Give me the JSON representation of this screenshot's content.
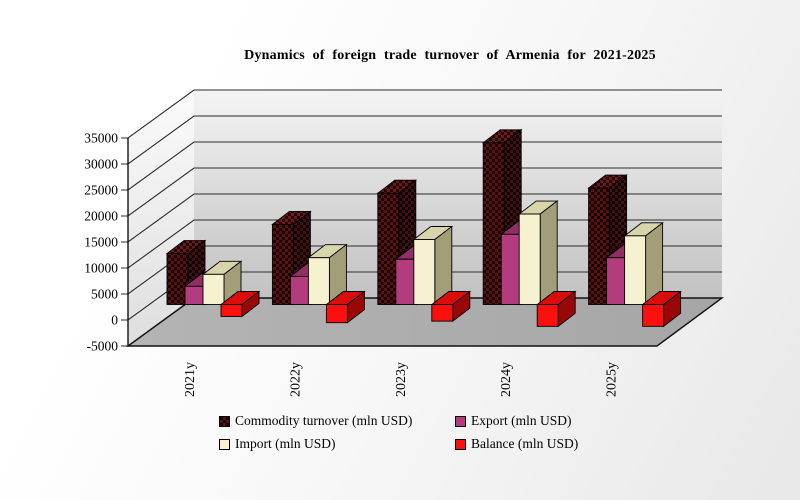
{
  "title": "Dynamics of foreign trade turnover of Armenia for 2021-2025",
  "chart_data": {
    "type": "bar",
    "projection": "3d-column",
    "title": "Dynamics of foreign trade turnover of Armenia for 2021-2025",
    "categories": [
      "2021y",
      "2022y",
      "2023y",
      "2024y",
      "2025y"
    ],
    "series": [
      {
        "name": "Commodity turnover (mln USD)",
        "values": [
          9800,
          15400,
          21400,
          31100,
          22400
        ],
        "fill": "dark-red-black-checker",
        "front_color": "#5c1111"
      },
      {
        "name": "Export (mln USD)",
        "values": [
          3500,
          5400,
          8700,
          13500,
          9000
        ],
        "front_color": "#b23c7e"
      },
      {
        "name": "Import (mln USD)",
        "values": [
          5800,
          9000,
          12500,
          17400,
          13200
        ],
        "front_color": "#f6f2d0"
      },
      {
        "name": "Balance (mln USD)",
        "values": [
          -2300,
          -3500,
          -3200,
          -4200,
          -4200
        ],
        "front_color": "#fc100e"
      }
    ],
    "ylim": [
      -5000,
      35000
    ],
    "ytick_step": 5000,
    "ytick_labels": [
      "35000",
      "30000",
      "25000",
      "20000",
      "15000",
      "10000",
      "5000",
      "0",
      "-5000"
    ],
    "xlabel": "",
    "ylabel": "",
    "grid": true,
    "legend_position": "bottom",
    "wall_color_top": "#f4f4f4",
    "wall_color_bottom": "#c2c2c2",
    "floor_color": "#a6a6a6"
  }
}
